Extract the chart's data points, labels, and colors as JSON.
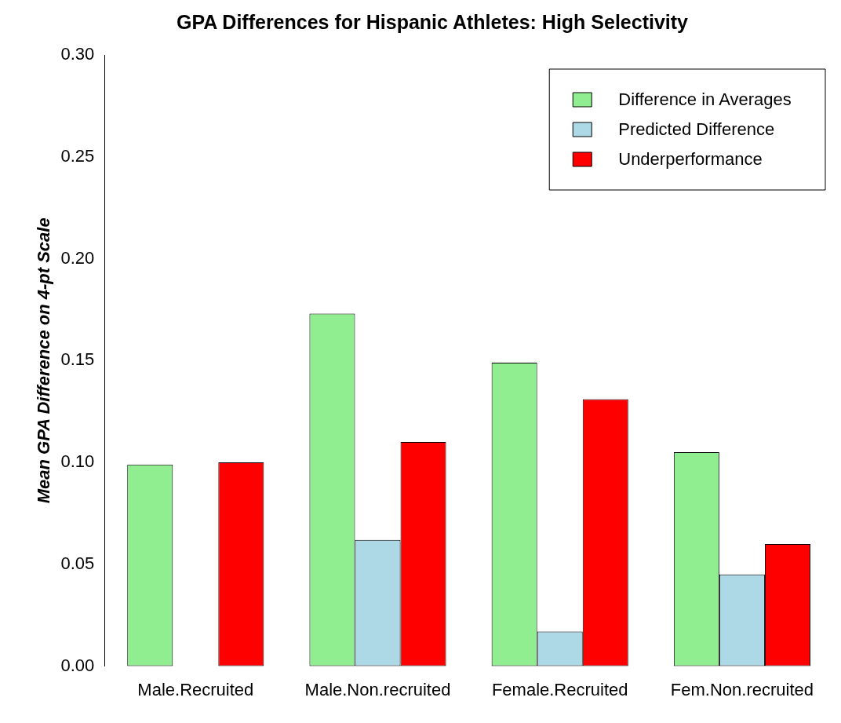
{
  "chart_data": {
    "type": "bar",
    "title": "GPA Differences for Hispanic Athletes: High Selectivity",
    "ylabel": "Mean GPA Difference on 4-pt Scale",
    "categories": [
      "Male.Recruited",
      "Male.Non.recruited",
      "Female.Recruited",
      "Fem.Non.recruited"
    ],
    "series": [
      {
        "name": "Difference in Averages",
        "color": "#90ee90",
        "values": [
          0.099,
          0.173,
          0.149,
          0.105
        ]
      },
      {
        "name": "Predicted Difference",
        "color": "#add8e6",
        "values": [
          0,
          0.062,
          0.017,
          0.045
        ]
      },
      {
        "name": "Underperformance",
        "color": "#ff0000",
        "values": [
          0.1,
          0.11,
          0.131,
          0.06
        ]
      }
    ],
    "ylim": [
      0,
      0.3
    ],
    "yticks": [
      {
        "value": 0,
        "label": "0.00"
      },
      {
        "value": 0.05,
        "label": "0.05"
      },
      {
        "value": 0.1,
        "label": "0.10"
      },
      {
        "value": 0.15,
        "label": "0.15"
      },
      {
        "value": 0.2,
        "label": "0.20"
      },
      {
        "value": 0.25,
        "label": "0.25"
      },
      {
        "value": 0.3,
        "label": "0.30"
      }
    ],
    "grid": false,
    "legend": "top right"
  }
}
